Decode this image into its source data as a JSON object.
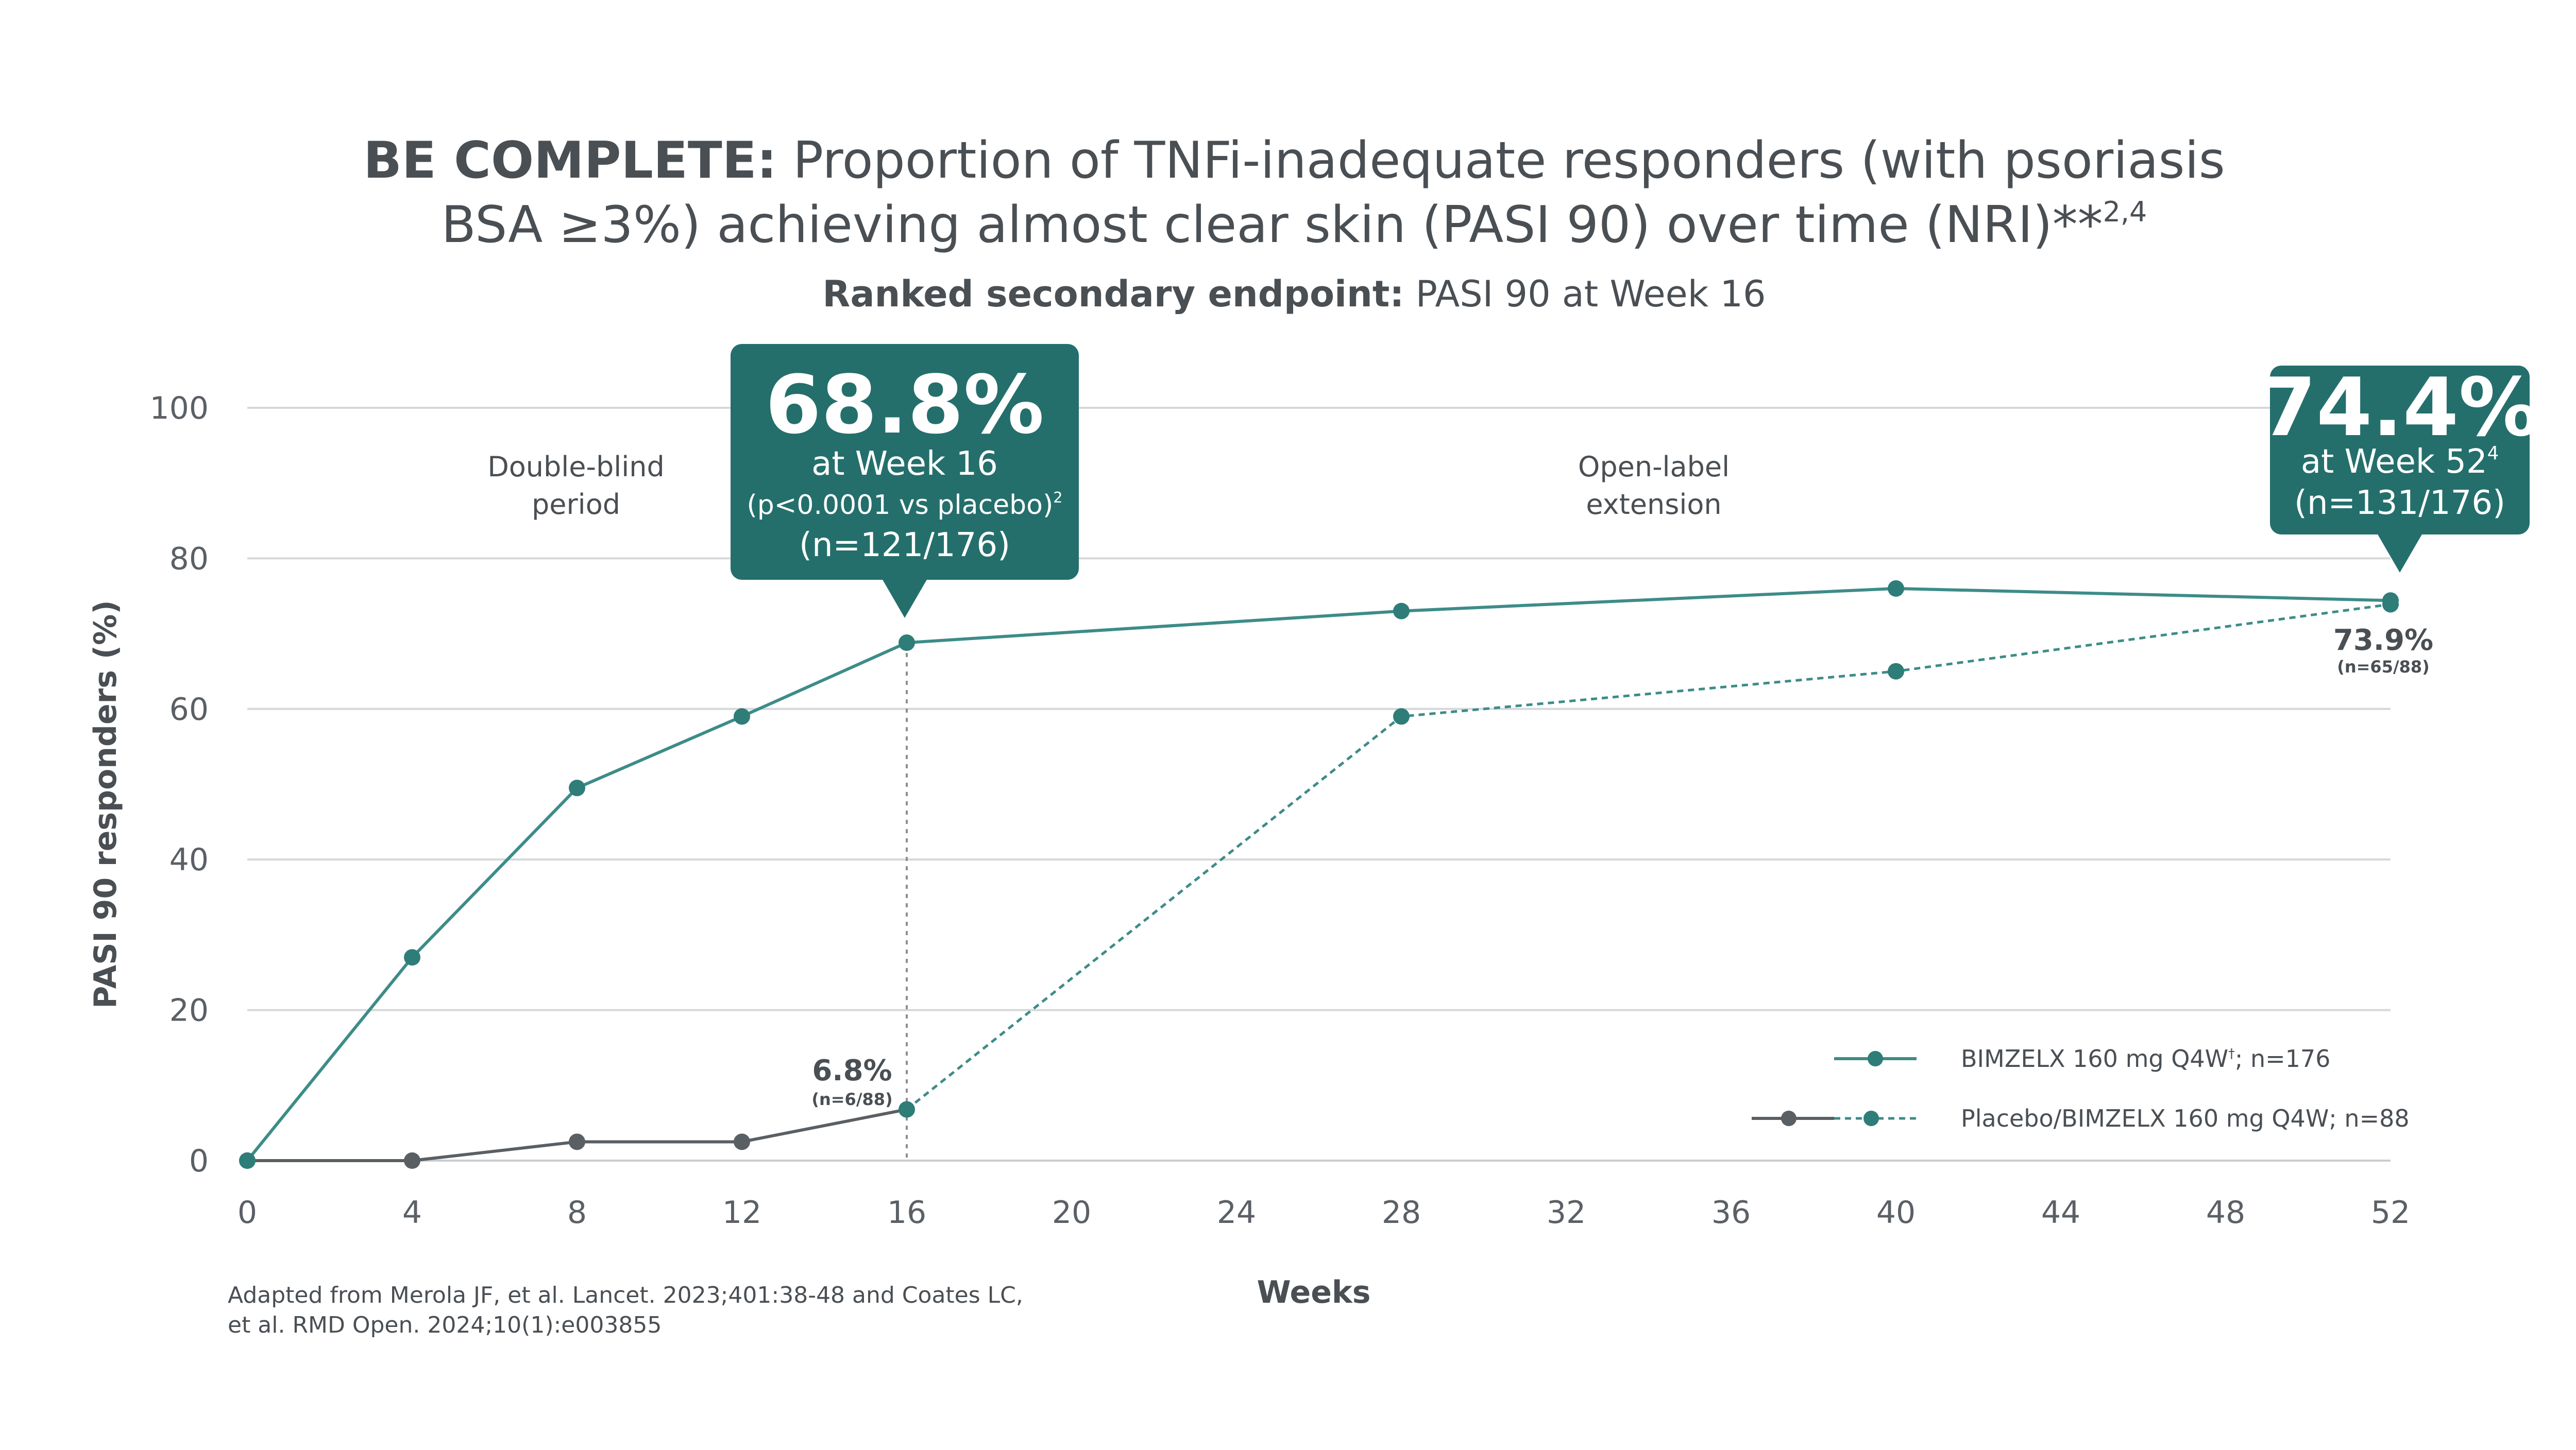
{
  "header": {
    "title_bold": "BE COMPLETE:",
    "title_line1": " Proportion of TNFi-inadequate responders (with psoriasis",
    "title_line2": "BSA ≥3%) achieving almost clear skin (PASI 90) over time (NRI)**",
    "title_line2_sup": "2,4",
    "subtitle_bold": "Ranked secondary endpoint:",
    "subtitle_rest": " PASI 90 at Week 16"
  },
  "regions": {
    "double_blind_1": "Double-blind",
    "double_blind_2": "period",
    "open_label_1": "Open-label",
    "open_label_2": "extension"
  },
  "callouts": {
    "week16": {
      "value": "68.8%",
      "line1": "at Week 16",
      "line2": "(p<0.0001 vs placebo)",
      "line2_sup": "2",
      "line3": "(n=121/176)"
    },
    "week52": {
      "value": "74.4%",
      "line1": "at Week 52",
      "line1_sup": "4",
      "line2": "(n=131/176)"
    }
  },
  "data_labels": {
    "placebo_w16": "6.8%",
    "placebo_w16_n": "(n=6/88)",
    "switch_w52": "73.9%",
    "switch_w52_n": "(n=65/88)"
  },
  "legend": {
    "series1": "BIMZELX 160 mg Q4W",
    "series1_sup": "†",
    "series1_tail": "; n=176",
    "series2": "Placebo/BIMZELX 160 mg Q4W; n=88"
  },
  "footnote": {
    "line1": "Adapted from Merola JF, et al. Lancet. 2023;401:38-48 and Coates LC,",
    "line2": "et al. RMD Open. 2024;10(1):e003855"
  },
  "colors": {
    "teal": "#2e7d78",
    "teal_light": "#3d8c88",
    "gray": "#5a5f63",
    "grid": "#d5d8da",
    "callout_bg": "#246f6c"
  },
  "chart_data": {
    "type": "line",
    "xlabel": "Weeks",
    "ylabel": "PASI 90 responders (%)",
    "xlim": [
      0,
      52
    ],
    "ylim": [
      0,
      100
    ],
    "x_ticks": [
      0,
      4,
      8,
      12,
      16,
      20,
      24,
      28,
      32,
      36,
      40,
      44,
      48,
      52
    ],
    "y_ticks": [
      0,
      20,
      40,
      60,
      80,
      100
    ],
    "grid": true,
    "legend_position": "bottom-right",
    "series": [
      {
        "name": "BIMZELX 160 mg Q4W†; n=176",
        "style": "solid",
        "x": [
          0,
          4,
          8,
          12,
          16,
          28,
          40,
          52
        ],
        "y": [
          0,
          27,
          49.5,
          59,
          68.8,
          73,
          76,
          74.4
        ]
      },
      {
        "name": "Placebo/BIMZELX 160 mg Q4W; n=88",
        "segments": [
          {
            "style": "solid",
            "x": [
              0,
              4,
              8,
              12,
              16
            ],
            "y": [
              0,
              0,
              2.5,
              2.5,
              6.8
            ]
          },
          {
            "style": "dashed",
            "x": [
              16,
              28,
              40,
              52
            ],
            "y": [
              6.8,
              59,
              65,
              73.9
            ]
          }
        ]
      }
    ]
  }
}
